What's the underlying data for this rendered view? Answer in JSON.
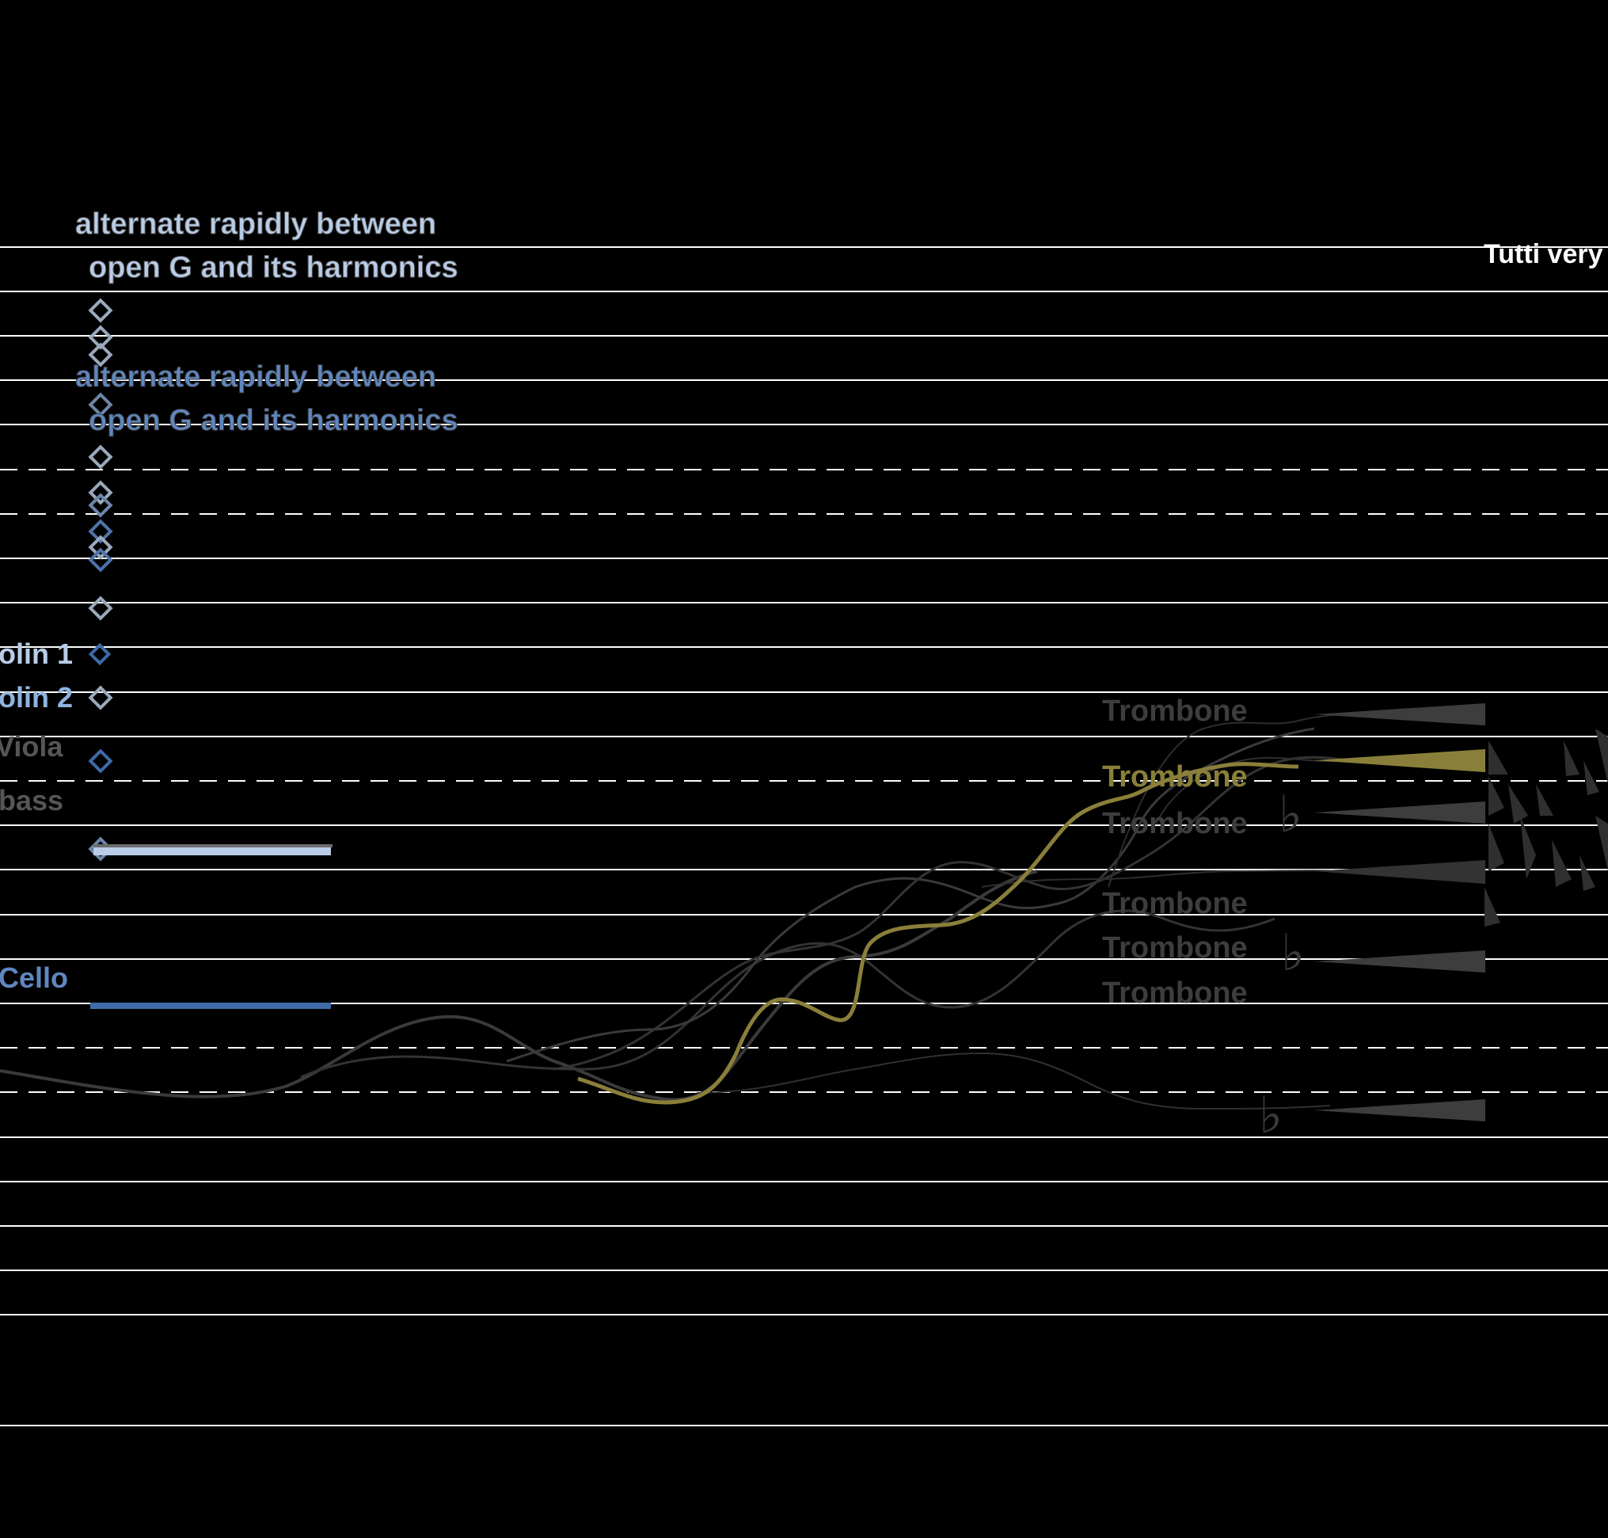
{
  "instruction_top": {
    "line1": "alternate rapidly between",
    "line2": "open G and its harmonics"
  },
  "instruction_bottom": {
    "line1": "alternate rapidly between",
    "line2": "open G and its harmonics"
  },
  "tutti_text": "Tutti very",
  "instruments_left": {
    "violin1": "olin 1",
    "violin2": "olin 2",
    "viola": "Viola",
    "bass": "bass",
    "cello": "Cello"
  },
  "trombones": [
    "Trombone",
    "Trombone",
    "Trombone",
    "Trombone",
    "Trombone",
    "Trombone"
  ],
  "accidental_flat": "♭",
  "colors": {
    "background": "#000000",
    "staff_line": "#ffffff",
    "violin1": "#b8cce8",
    "violin2": "#8fb3e0",
    "viola": "#5f87c0",
    "cello": "#3f6aa8",
    "bass": "#555555",
    "trombone_highlight": "#8a7f3a",
    "trombone_dim": "#3d3d3d"
  }
}
